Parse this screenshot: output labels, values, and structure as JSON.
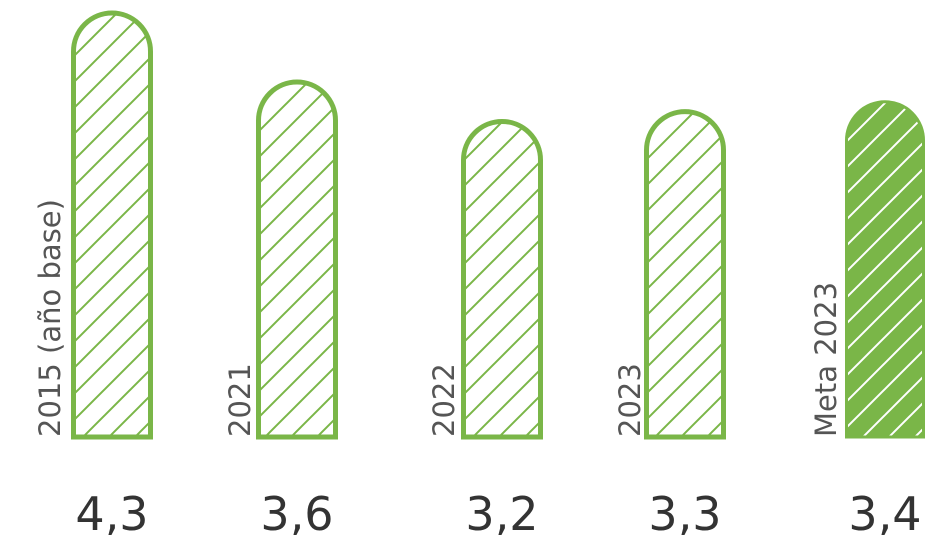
{
  "chart_data": {
    "type": "bar",
    "categories": [
      "2015 (año base)",
      "2021",
      "2022",
      "2023",
      "Meta 2023"
    ],
    "values": [
      4.3,
      3.6,
      3.2,
      3.3,
      3.4
    ],
    "value_labels": [
      "4,3",
      "3,6",
      "3,2",
      "3,3",
      "3,4"
    ],
    "highlighted": [
      false,
      false,
      false,
      false,
      true
    ],
    "title": "",
    "xlabel": "",
    "ylabel": "",
    "ylim": [
      0,
      4.3
    ],
    "grid": false,
    "legend": "none"
  },
  "colors": {
    "bar_stroke": "#7ab648",
    "hatch": "#7ab648",
    "highlight_fill": "#7ab648",
    "highlight_hatch": "#ffffff",
    "category_text": "#555555",
    "value_text": "#333333"
  }
}
